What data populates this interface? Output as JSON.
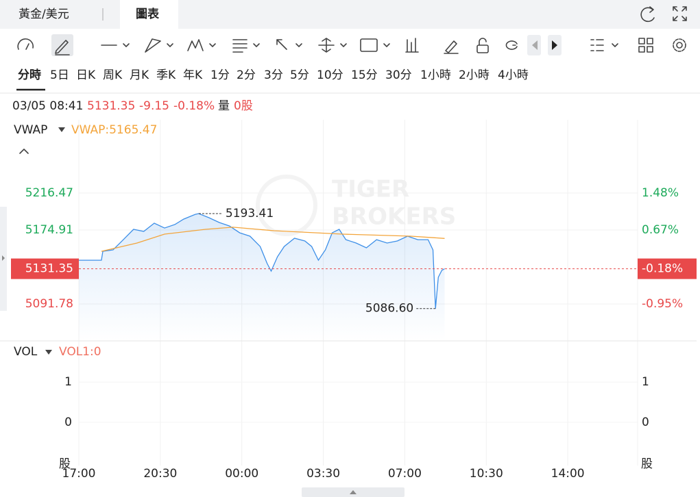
{
  "tabs": [
    "黃金/美元",
    "圖表"
  ],
  "timeframes": [
    "分時",
    "5日",
    "日K",
    "周K",
    "月K",
    "季K",
    "年K",
    "1分",
    "2分",
    "3分",
    "5分",
    "10分",
    "15分",
    "30分",
    "1小時",
    "2小時",
    "4小時"
  ],
  "info": {
    "datetime": "03/05 08:41",
    "price": "5131.35",
    "change": "-9.15",
    "change_pct": "-0.18%",
    "volume_label": "量",
    "volume": "0股"
  },
  "indicator": {
    "value_label": "VWAP:5165.47"
  },
  "watermark": [
    "TIGER",
    "BROKERS"
  ],
  "chart_data": [
    {
      "type": "line",
      "xlim": [
        0,
        24
      ],
      "xticks": [
        {
          "value": 0,
          "label": "17:00"
        },
        {
          "value": 3.5,
          "label": "20:30"
        },
        {
          "value": 7,
          "label": "00:00"
        },
        {
          "value": 10.5,
          "label": "03:30"
        },
        {
          "value": 14,
          "label": "07:00"
        },
        {
          "value": 17.5,
          "label": "10:30"
        },
        {
          "value": 21,
          "label": "14:00"
        }
      ],
      "ylim": [
        5050.2,
        5298.9
      ],
      "yticks": [
        5091.78,
        5174.91,
        5216.47
      ],
      "y2lim": [
        -1.76,
        3.08
      ],
      "y2ticks": [
        {
          "value": -0.95,
          "label": "-0.95%"
        },
        {
          "value": 0.67,
          "label": "0.67%"
        },
        {
          "value": 1.48,
          "label": "1.48%"
        }
      ],
      "grid": true,
      "up_color": "#1daa5a",
      "down_color": "#e8494a",
      "series": [
        {
          "color": "#3d8fe8",
          "x": [
            0,
            0.97,
            1.03,
            1.47,
            1.91,
            2.35,
            2.79,
            3.24,
            3.68,
            4.12,
            4.5,
            5,
            5.15,
            5.59,
            6.03,
            6.47,
            6.91,
            7.35,
            7.79,
            8.09,
            8.26,
            8.53,
            8.82,
            9.26,
            9.71,
            10,
            10.29,
            10.59,
            10.88,
            11.18,
            11.47,
            11.91,
            12.35,
            12.79,
            13.24,
            13.68,
            14.12,
            14.56,
            15,
            15.21,
            15.32,
            15.44,
            15.59,
            15.71
          ],
          "values": [
            5141,
            5141,
            5151,
            5152.6,
            5164.1,
            5175.7,
            5173.4,
            5182.6,
            5177.2,
            5181.1,
            5187.2,
            5192.6,
            5193.41,
            5188.8,
            5183.4,
            5179.5,
            5171.8,
            5168,
            5156.4,
            5137.2,
            5128.7,
            5144.9,
            5156.4,
            5165.7,
            5162.6,
            5156.4,
            5141,
            5152.6,
            5171.8,
            5175.7,
            5164.1,
            5160.3,
            5154.9,
            5164.1,
            5160.3,
            5162.6,
            5168,
            5164.1,
            5164.1,
            5152.6,
            5086.6,
            5121.8,
            5129.5,
            5131.35
          ]
        },
        {
          "name": "VWAP",
          "color": "#f3a43a",
          "x": [
            0.97,
            2.5,
            3.68,
            5.44,
            6.62,
            8.38,
            11.32,
            14.26,
            15.71
          ],
          "values": [
            5151,
            5160.3,
            5170.3,
            5175.7,
            5178.1,
            5174.2,
            5170.3,
            5168,
            5165.47
          ]
        }
      ],
      "annotations": [
        {
          "x": 5.15,
          "value": 5193.41,
          "label": "5193.41"
        },
        {
          "x": 15.32,
          "value": 5086.6,
          "label": "5086.60"
        }
      ],
      "last": {
        "value": 5131.35,
        "pct": {
          "value": -0.18,
          "label": "-0.18%"
        }
      }
    },
    {
      "type": "bar",
      "title": "VOL",
      "subtitle": "VOL1:0",
      "ylim": [
        -1.07,
        2.02
      ],
      "yticks": [
        0,
        1
      ],
      "unit": "股",
      "values": []
    }
  ]
}
